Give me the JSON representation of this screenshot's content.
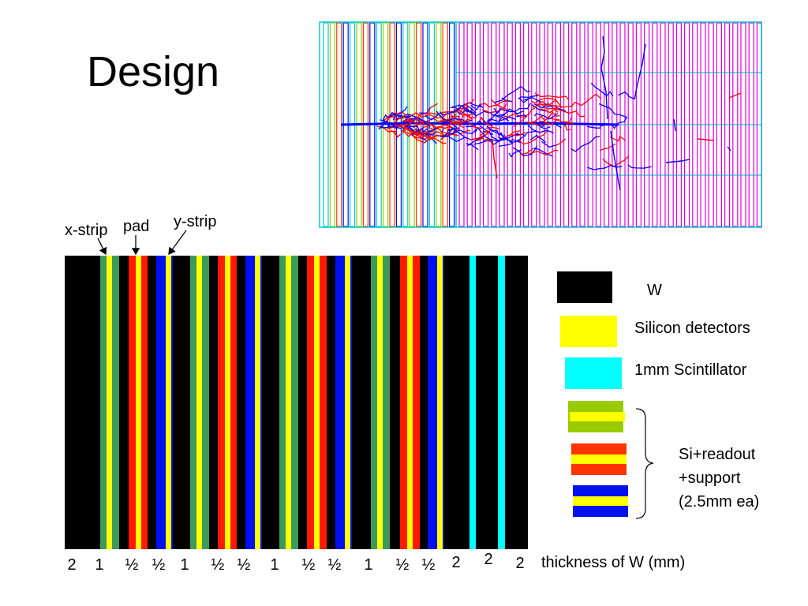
{
  "title": "Design",
  "annotations": {
    "x_strip": "x-strip",
    "pad": "pad",
    "y_strip": "y-strip"
  },
  "colors": {
    "tungsten": "#000000",
    "silicon": "#ffff00",
    "scintillator": "#00ffff",
    "x_strip_support": "#3c9a5a",
    "pad_support": "#ff1a00",
    "y_strip_support": "#0010ee",
    "sim_tracks_red": "#ff0000",
    "sim_tracks_blue": "#0000ff",
    "sim_grid_magenta": "#dd00dd"
  },
  "thickness": {
    "values": [
      "2",
      "1",
      "½",
      "½",
      "1",
      "½",
      "½",
      "1",
      "½",
      "½",
      "1",
      "½",
      "½",
      "2",
      "2",
      "2"
    ],
    "caption": "thickness of W (mm)"
  },
  "legend": {
    "w": "W",
    "silicon": "Silicon detectors",
    "scintillator": "1mm Scintillator",
    "readout_lines": [
      "Si+readout",
      "+support",
      "(2.5mm ea)"
    ]
  }
}
